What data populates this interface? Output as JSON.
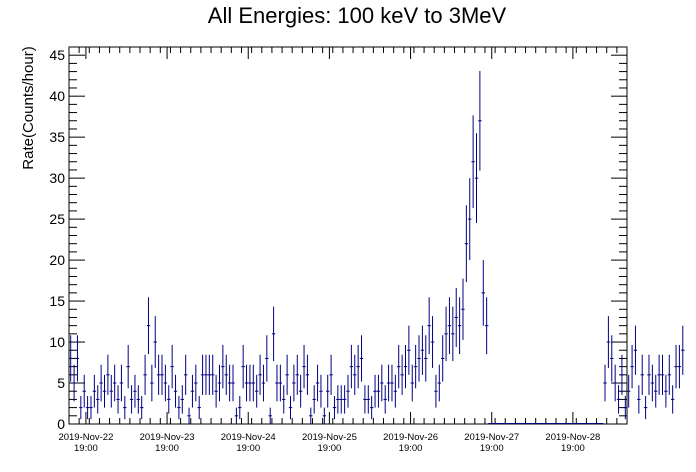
{
  "chart_data": {
    "type": "scatter",
    "title": "All Energies:  100 keV to 3MeV",
    "xlabel": "",
    "ylabel": "Rate(Counts/hour)",
    "ylim": [
      0,
      46
    ],
    "yticks": [
      0,
      5,
      10,
      15,
      20,
      25,
      30,
      35,
      40,
      45
    ],
    "xlim_hours": [
      0,
      165
    ],
    "xticks": [
      {
        "date": "2019-Nov-22",
        "time": "19:00",
        "hour": 5
      },
      {
        "date": "2019-Nov-23",
        "time": "19:00",
        "hour": 29
      },
      {
        "date": "2019-Nov-24",
        "time": "19:00",
        "hour": 53
      },
      {
        "date": "2019-Nov-25",
        "time": "19:00",
        "hour": 77
      },
      {
        "date": "2019-Nov-26",
        "time": "19:00",
        "hour": 101
      },
      {
        "date": "2019-Nov-27",
        "time": "19:00",
        "hour": 125
      },
      {
        "date": "2019-Nov-28",
        "time": "19:00",
        "hour": 149
      }
    ],
    "grid": false,
    "series": [
      {
        "color": "#000080",
        "values": [
          8,
          5,
          8,
          2,
          4,
          2,
          2,
          4,
          3,
          5,
          4,
          6,
          4,
          5,
          3,
          5,
          2,
          7,
          3,
          4,
          3,
          2,
          6,
          12,
          5,
          10,
          6,
          6,
          5,
          3,
          7,
          4,
          2,
          3,
          6,
          1,
          4,
          5,
          2,
          6,
          6,
          6,
          6,
          4,
          5,
          7,
          6,
          5,
          5,
          1,
          2,
          7,
          5,
          5,
          5,
          4,
          6,
          5,
          8,
          1,
          11,
          5,
          5,
          3,
          6,
          2,
          5,
          6,
          4,
          7,
          6,
          1,
          3,
          5,
          4,
          1,
          4,
          6,
          2,
          3,
          3,
          3,
          4,
          7,
          6,
          7,
          8,
          3,
          3,
          2,
          4,
          4,
          5,
          3,
          5,
          5,
          4,
          7,
          6,
          7,
          9,
          5,
          7,
          8,
          9,
          8,
          12,
          10,
          4,
          5,
          8,
          11,
          12,
          11,
          13,
          12,
          14,
          22,
          25,
          32,
          30,
          37,
          16,
          12,
          null,
          null,
          null,
          null,
          null,
          null,
          null,
          null,
          null,
          null,
          null,
          null,
          null,
          null,
          null,
          null,
          null,
          null,
          null,
          null,
          null,
          null,
          null,
          null,
          null,
          null,
          null,
          null,
          null,
          null,
          null,
          null,
          null,
          null,
          5,
          10,
          8,
          5,
          3,
          6,
          2,
          4,
          7,
          9,
          3,
          6,
          2,
          6,
          5,
          4,
          6,
          6,
          4,
          6,
          3,
          7,
          7,
          9
        ]
      }
    ]
  }
}
